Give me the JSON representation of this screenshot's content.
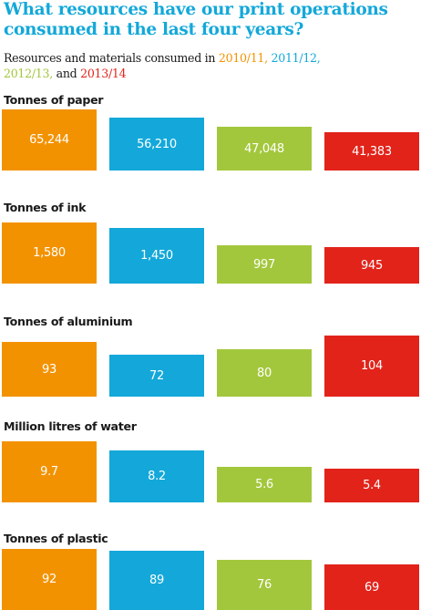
{
  "title_line1": "What resources have our print operations",
  "title_line2": "consumed in the last four years?",
  "subtitle": {
    "text_before": "Resources and materials consumed in ",
    "years": [
      "2010/11,",
      "2011/12,",
      "2012/13,",
      "2013/14"
    ],
    "and_text": " and "
  },
  "colors": {
    "title": "#13a8d9",
    "series": [
      "#f39200",
      "#13a8d9",
      "#a3c73c",
      "#e2231a"
    ]
  },
  "chart_data": {
    "type": "bar",
    "categories": [
      "2010/11",
      "2011/12",
      "2012/13",
      "2013/14"
    ],
    "panels": [
      {
        "title": "Tonnes of paper",
        "values": [
          65244,
          56210,
          47048,
          41383
        ],
        "labels": [
          "65,244",
          "56,210",
          "47,048",
          "41,383"
        ]
      },
      {
        "title": "Tonnes of ink",
        "values": [
          1580,
          1450,
          997,
          945
        ],
        "labels": [
          "1,580",
          "1,450",
          "997",
          "945"
        ]
      },
      {
        "title": "Tonnes of aluminium",
        "values": [
          93,
          72,
          80,
          104
        ],
        "labels": [
          "93",
          "72",
          "80",
          "104"
        ]
      },
      {
        "title": "Million litres of water",
        "values": [
          9.7,
          8.2,
          5.6,
          5.4
        ],
        "labels": [
          "9.7",
          "8.2",
          "5.6",
          "5.4"
        ]
      },
      {
        "title": "Tonnes of plastic",
        "values": [
          92,
          89,
          76,
          69
        ],
        "labels": [
          "92",
          "89",
          "76",
          "69"
        ]
      }
    ]
  }
}
